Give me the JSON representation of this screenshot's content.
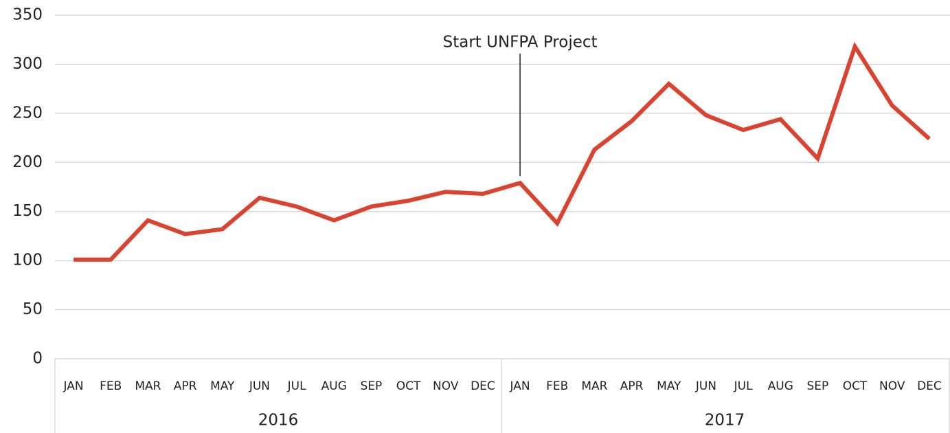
{
  "chart_data": {
    "type": "line",
    "categories": [
      "JAN",
      "FEB",
      "MAR",
      "APR",
      "MAY",
      "JUN",
      "JUL",
      "AUG",
      "SEP",
      "OCT",
      "NOV",
      "DEC",
      "JAN",
      "FEB",
      "MAR",
      "APR",
      "MAY",
      "JUN",
      "JUL",
      "AUG",
      "SEP",
      "OCT",
      "NOV",
      "DEC"
    ],
    "groups": [
      "2016",
      "2017"
    ],
    "series": [
      {
        "color": "#d9432f",
        "values": [
          101,
          101,
          141,
          127,
          132,
          164,
          155,
          141,
          155,
          161,
          170,
          168,
          179,
          138,
          213,
          242,
          280,
          248,
          233,
          244,
          204,
          318,
          258,
          224
        ]
      }
    ],
    "ylim": [
      0,
      350
    ],
    "yticks": [
      0,
      50,
      100,
      150,
      200,
      250,
      300,
      350
    ],
    "grid": true,
    "annotations": [
      {
        "text": "Start UNFPA Project",
        "point": 12
      }
    ]
  }
}
